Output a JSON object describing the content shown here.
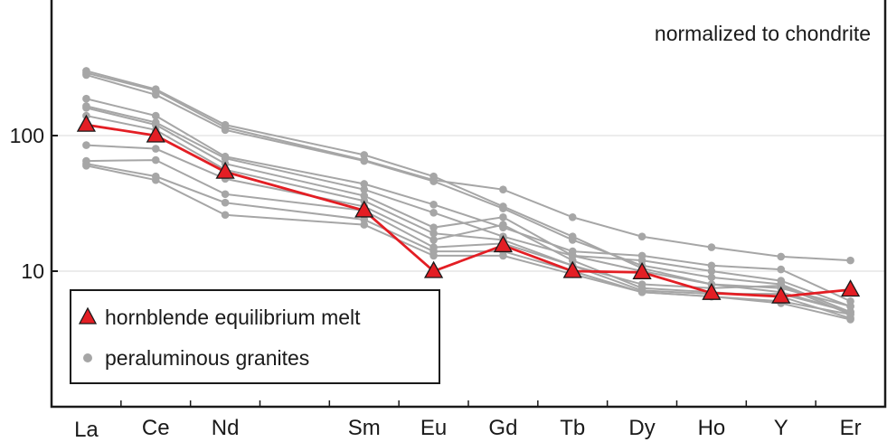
{
  "chart_data": {
    "type": "line",
    "title": "",
    "annotation": "normalized to chondrite",
    "xlabel": "",
    "ylabel": "",
    "yscale": "log",
    "ylim": [
      1,
      1000
    ],
    "yticks": [
      {
        "value": 10,
        "label": "10"
      },
      {
        "value": 100,
        "label": "100"
      }
    ],
    "grid": "horizontal at 10 and 100",
    "legend_position": "bottom-left",
    "categories": [
      "La",
      "Ce",
      "Nd",
      "",
      "Sm",
      "Eu",
      "Gd",
      "Tb",
      "Dy",
      "Ho",
      "Y",
      "Er"
    ],
    "series": [
      {
        "name": "hornblende equilibrium melt",
        "color": "#e31e24",
        "marker": "triangle",
        "values": [
          120,
          100,
          54,
          null,
          28,
          10,
          15.5,
          10,
          9.8,
          6.9,
          6.5,
          7.3
        ]
      },
      {
        "name": "peraluminous granites",
        "color": "#a6a6a6",
        "marker": "circle",
        "lines": [
          [
            300,
            220,
            120,
            null,
            72,
            50,
            30,
            18,
            10.5,
            8,
            7.5,
            5.5
          ],
          [
            290,
            215,
            115,
            null,
            66,
            47,
            40,
            25,
            18,
            15,
            12.8,
            12
          ],
          [
            280,
            200,
            110,
            null,
            65,
            46,
            29,
            17,
            11,
            9,
            8,
            5
          ],
          [
            187,
            140,
            70,
            null,
            44,
            31,
            21,
            14,
            13,
            11,
            10.3,
            6
          ],
          [
            165,
            125,
            68,
            null,
            40,
            27,
            18,
            13,
            12,
            10,
            8.5,
            5.5
          ],
          [
            160,
            120,
            62,
            null,
            36,
            21,
            25,
            13,
            10,
            8,
            7,
            5
          ],
          [
            140,
            110,
            56,
            null,
            33,
            19,
            17,
            11,
            8,
            7.5,
            7.8,
            4.8
          ],
          [
            85,
            80,
            48,
            null,
            30,
            17,
            22,
            12,
            7.5,
            7,
            6.5,
            4.5
          ],
          [
            65,
            66,
            37,
            null,
            28,
            15,
            16,
            11,
            7.2,
            6.8,
            6.8,
            5
          ],
          [
            62,
            50,
            32,
            null,
            24,
            14,
            14,
            10,
            7,
            6.5,
            6,
            4.8
          ],
          [
            60,
            47,
            26,
            null,
            22,
            13,
            13,
            9.5,
            7,
            6.5,
            5.8,
            4.4
          ]
        ]
      }
    ]
  }
}
